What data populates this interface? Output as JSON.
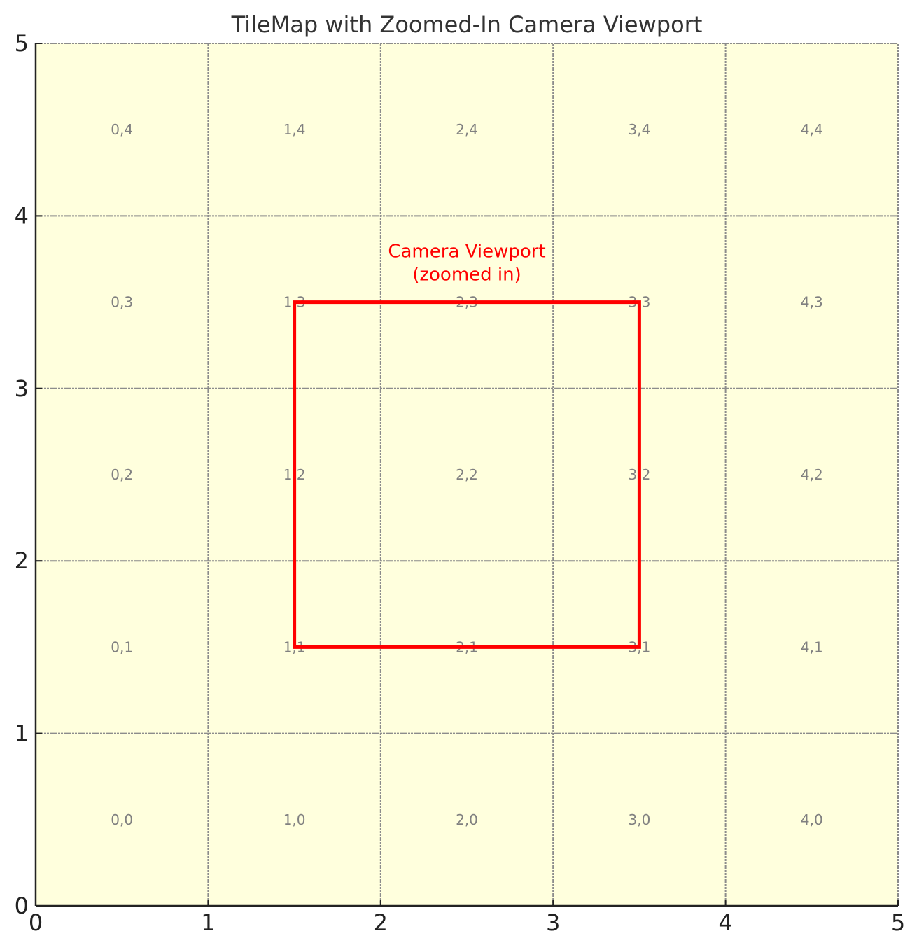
{
  "chart_data": {
    "type": "heatmap",
    "title": "TileMap with Zoomed-In Camera Viewport",
    "xlabel": "",
    "ylabel": "",
    "xlim": [
      0,
      5
    ],
    "ylim": [
      0,
      5
    ],
    "x_ticks": [
      "0",
      "1",
      "2",
      "3",
      "4",
      "5"
    ],
    "y_ticks": [
      "0",
      "1",
      "2",
      "3",
      "4",
      "5"
    ],
    "grid": true,
    "tile_color": "#ffffdd",
    "grid_color": "#8c8c8c",
    "tiles": [
      {
        "x": 0,
        "y": 0,
        "label": "0,0"
      },
      {
        "x": 1,
        "y": 0,
        "label": "1,0"
      },
      {
        "x": 2,
        "y": 0,
        "label": "2,0"
      },
      {
        "x": 3,
        "y": 0,
        "label": "3,0"
      },
      {
        "x": 4,
        "y": 0,
        "label": "4,0"
      },
      {
        "x": 0,
        "y": 1,
        "label": "0,1"
      },
      {
        "x": 1,
        "y": 1,
        "label": "1,1"
      },
      {
        "x": 2,
        "y": 1,
        "label": "2,1"
      },
      {
        "x": 3,
        "y": 1,
        "label": "3,1"
      },
      {
        "x": 4,
        "y": 1,
        "label": "4,1"
      },
      {
        "x": 0,
        "y": 2,
        "label": "0,2"
      },
      {
        "x": 1,
        "y": 2,
        "label": "1,2"
      },
      {
        "x": 2,
        "y": 2,
        "label": "2,2"
      },
      {
        "x": 3,
        "y": 2,
        "label": "3,2"
      },
      {
        "x": 4,
        "y": 2,
        "label": "4,2"
      },
      {
        "x": 0,
        "y": 3,
        "label": "0,3"
      },
      {
        "x": 1,
        "y": 3,
        "label": "1,3"
      },
      {
        "x": 2,
        "y": 3,
        "label": "2,3"
      },
      {
        "x": 3,
        "y": 3,
        "label": "3,3"
      },
      {
        "x": 4,
        "y": 3,
        "label": "4,3"
      },
      {
        "x": 0,
        "y": 4,
        "label": "0,4"
      },
      {
        "x": 1,
        "y": 4,
        "label": "1,4"
      },
      {
        "x": 2,
        "y": 4,
        "label": "2,4"
      },
      {
        "x": 3,
        "y": 4,
        "label": "3,4"
      },
      {
        "x": 4,
        "y": 4,
        "label": "4,4"
      }
    ],
    "viewport": {
      "x": 1.5,
      "y": 1.5,
      "width": 2,
      "height": 2,
      "color": "#ff0000",
      "label_lines": [
        "Camera Viewport",
        "(zoomed in)"
      ]
    }
  }
}
